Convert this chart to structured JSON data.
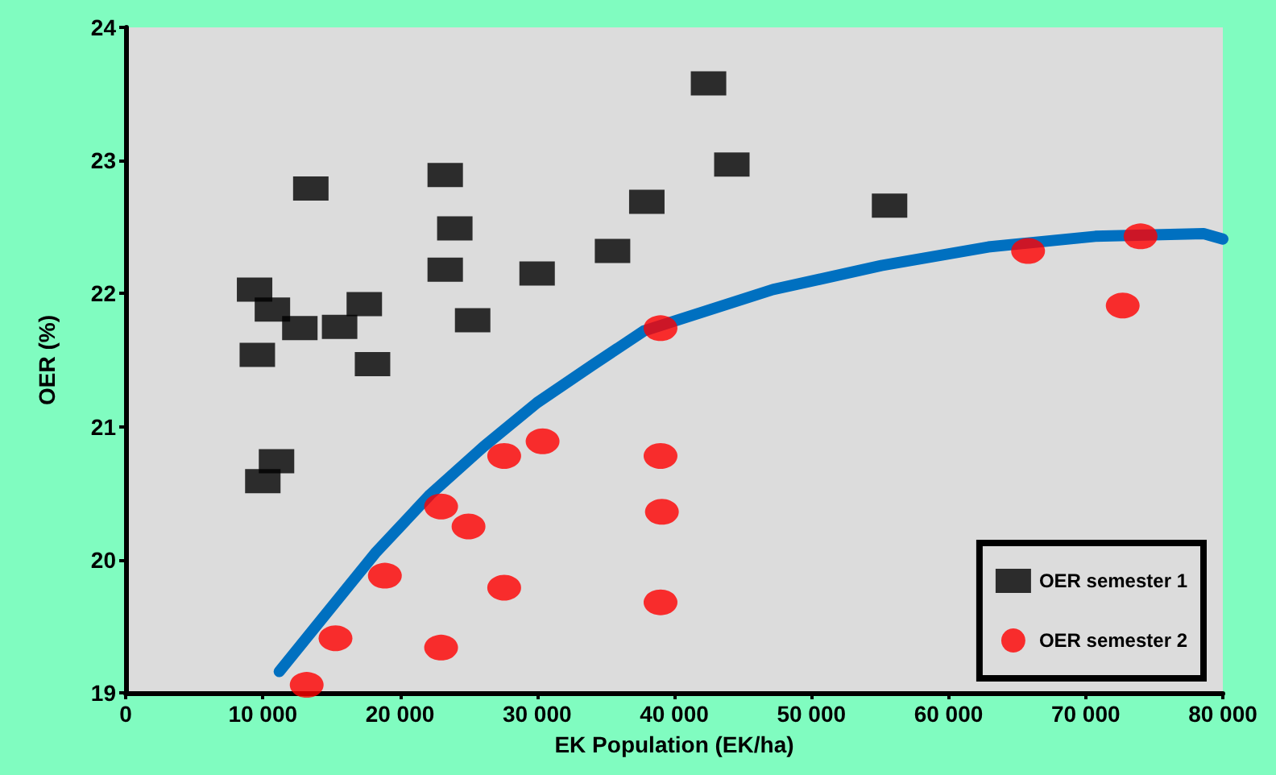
{
  "chart_data": {
    "type": "scatter",
    "xlabel": "EK Population (EK/ha)",
    "ylabel": "OER (%)",
    "xlim": [
      0,
      80000
    ],
    "ylim": [
      19,
      24
    ],
    "xticks": [
      0,
      {
        "value": 10000,
        "label": "10 000"
      },
      {
        "value": 20000,
        "label": "20 000"
      },
      {
        "value": 30000,
        "label": "30 000"
      },
      {
        "value": 40000,
        "label": "40 000"
      },
      {
        "value": 50000,
        "label": "50 000"
      },
      {
        "value": 60000,
        "label": "60 000"
      },
      {
        "value": 70000,
        "label": "70 000"
      },
      {
        "value": 80000,
        "label": "80 000"
      }
    ],
    "yticks": [
      19,
      20,
      21,
      22,
      23,
      24
    ],
    "grid": false,
    "legend": "bottom right",
    "series": [
      {
        "name": "OER semester 1",
        "color": "#000000",
        "marker": "square",
        "x": [
          9400,
          10700,
          12700,
          9600,
          13500,
          15600,
          17400,
          18000,
          10000,
          11000,
          23300,
          24000,
          23300,
          25300,
          30000,
          35500,
          38000,
          42500,
          44200,
          55700
        ],
        "values": [
          22.03,
          21.88,
          21.74,
          21.54,
          22.79,
          21.75,
          21.92,
          21.47,
          20.59,
          20.74,
          22.89,
          22.49,
          22.18,
          21.8,
          22.15,
          22.32,
          22.69,
          23.58,
          22.97,
          22.66
        ]
      },
      {
        "name": "OER semester 2",
        "color": "#ff0000",
        "marker": "circle",
        "x": [
          13200,
          15300,
          18900,
          23000,
          25000,
          23000,
          27600,
          30400,
          27600,
          39000,
          39000,
          39100,
          39000,
          65800,
          74000,
          72700
        ],
        "values": [
          19.06,
          19.41,
          19.88,
          20.4,
          20.25,
          19.34,
          20.78,
          20.89,
          19.79,
          21.74,
          20.78,
          20.36,
          19.68,
          22.32,
          22.43,
          21.91
        ]
      },
      {
        "type": "line",
        "color": "#0070c0",
        "marker": "none",
        "x": [
          11200,
          18200,
          22200,
          26100,
          30000,
          34000,
          37800,
          47200,
          55100,
          62900,
          70700,
          78600,
          80000
        ],
        "values": [
          19.16,
          20.05,
          20.49,
          20.85,
          21.18,
          21.46,
          21.72,
          22.03,
          22.21,
          22.35,
          22.43,
          22.45,
          22.41
        ]
      }
    ]
  }
}
